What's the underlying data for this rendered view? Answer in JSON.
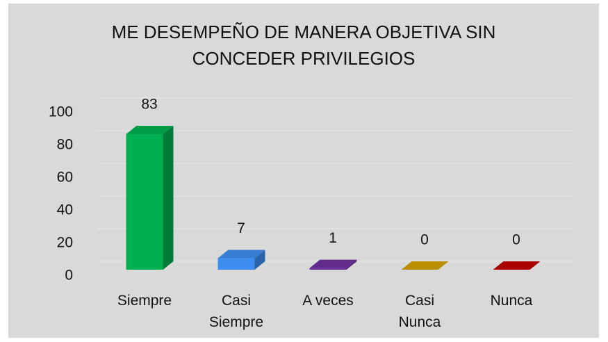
{
  "chart_data": {
    "type": "bar3d",
    "title": "ME DESEMPEÑO DE MANERA OBJETIVA SIN CONCEDER PRIVILEGIOS",
    "categories": [
      "Siempre",
      "Casi Siempre",
      "A veces",
      "Casi Nunca",
      "Nunca"
    ],
    "values": [
      83,
      7,
      1,
      0,
      0
    ],
    "colors": [
      "#00b050",
      "#3d8ef0",
      "#7030a0",
      "#d4a000",
      "#c00000"
    ],
    "ylim": [
      0,
      100
    ],
    "yticks": [
      0,
      20,
      40,
      60,
      80,
      100
    ],
    "grid": true
  }
}
